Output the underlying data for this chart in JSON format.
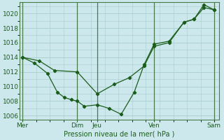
{
  "background_color": "#cce8ec",
  "grid_color": "#a8cccc",
  "line_color": "#1a5c1a",
  "ylabel": "Pression niveau de la mer( hPa )",
  "ylim": [
    1005.5,
    1021.5
  ],
  "yticks": [
    1006,
    1008,
    1010,
    1012,
    1014,
    1016,
    1018,
    1020
  ],
  "xlim": [
    0,
    20
  ],
  "xtick_labels": [
    "Mer",
    "Dim",
    "Jeu",
    "Ven",
    "Sam"
  ],
  "xtick_positions": [
    0.3,
    5.8,
    7.8,
    13.5,
    19.5
  ],
  "vlines_major": [
    0.3,
    5.8,
    7.8,
    13.5,
    19.5
  ],
  "line1_x": [
    0.3,
    2.0,
    3.5,
    5.8,
    7.8,
    9.5,
    11.0,
    12.5,
    13.5,
    15.0,
    16.5,
    17.5,
    18.5,
    19.5
  ],
  "line1_y": [
    1014.0,
    1013.5,
    1012.2,
    1012.0,
    1009.0,
    1010.3,
    1011.2,
    1012.8,
    1015.5,
    1016.0,
    1018.8,
    1019.2,
    1021.2,
    1020.5
  ],
  "line2_x": [
    0.3,
    1.5,
    2.8,
    3.8,
    4.5,
    5.2,
    5.8,
    6.5,
    7.8,
    9.0,
    10.2,
    11.5,
    12.5,
    13.5,
    15.0,
    16.5,
    17.5,
    18.5,
    19.5
  ],
  "line2_y": [
    1014.0,
    1013.2,
    1011.8,
    1009.2,
    1008.5,
    1008.2,
    1008.0,
    1007.3,
    1007.5,
    1007.0,
    1006.2,
    1009.2,
    1013.0,
    1015.8,
    1016.2,
    1018.8,
    1019.2,
    1020.8,
    1020.5
  ]
}
